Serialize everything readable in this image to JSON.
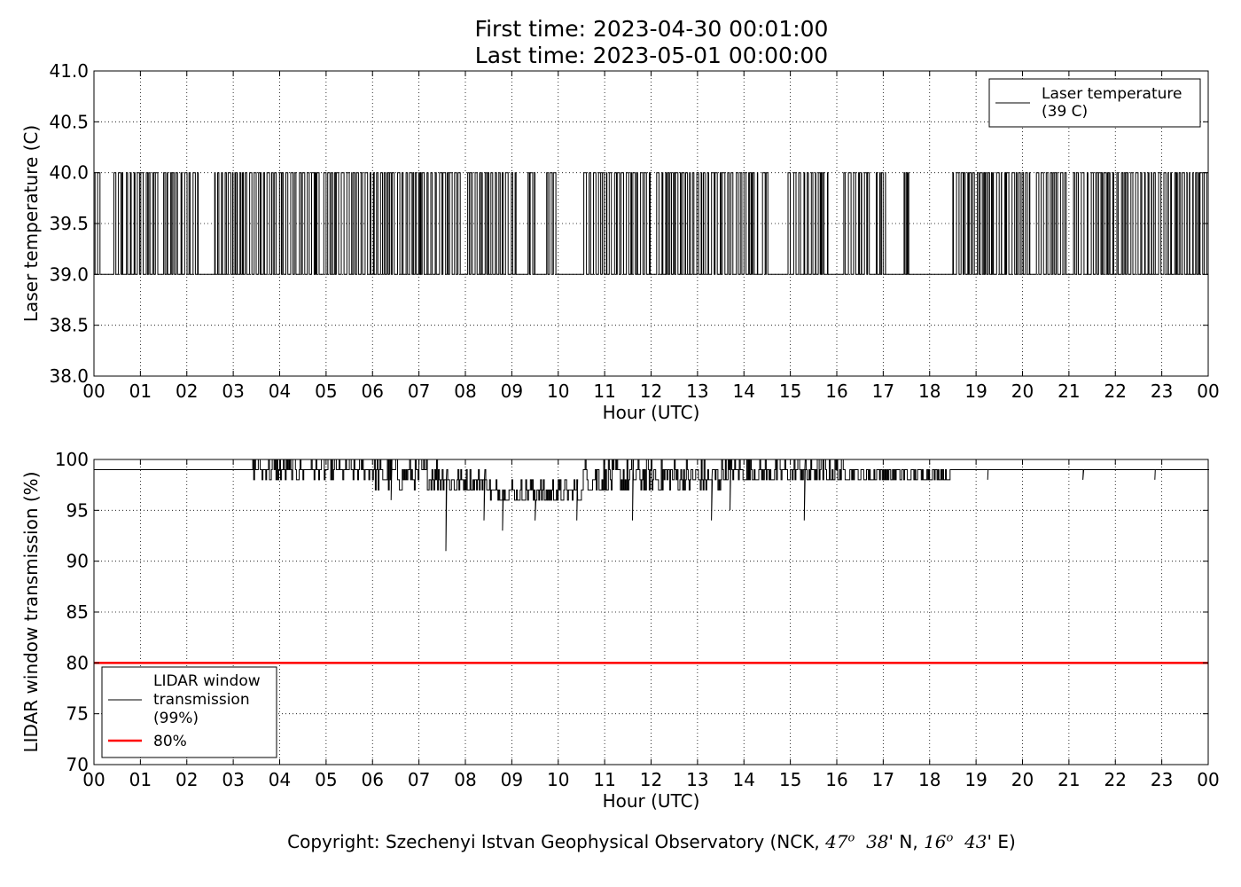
{
  "header": {
    "title_line1": "First time: 2023-04-30 00:01:00",
    "title_line2": "Last time: 2023-05-01 00:00:00"
  },
  "footer": {
    "copyright_prefix": "Copyright: Szechenyi Istvan Geophysical Observatory (NCK, ",
    "lat_deg": "47",
    "lat_min": "38",
    "lat_dir": "N",
    "lon_deg": "16",
    "lon_min": "43",
    "lon_dir": "E",
    "suffix": ")",
    "deg_symbol": "o",
    "min_symbol": "'"
  },
  "colors": {
    "series": "#000000",
    "threshold": "#ff0000",
    "grid": "#888888"
  },
  "chart_data": [
    {
      "type": "line",
      "xlabel": "Hour (UTC)",
      "ylabel": "Laser temperature (C)",
      "xlim": [
        0,
        24
      ],
      "ylim": [
        38.0,
        41.0
      ],
      "x_ticks": [
        "00",
        "01",
        "02",
        "03",
        "04",
        "05",
        "06",
        "07",
        "08",
        "09",
        "10",
        "11",
        "12",
        "13",
        "14",
        "15",
        "16",
        "17",
        "18",
        "19",
        "20",
        "21",
        "22",
        "23",
        "00"
      ],
      "y_ticks": [
        "38.0",
        "38.5",
        "39.0",
        "39.5",
        "40.0",
        "40.5",
        "41.0"
      ],
      "grid": true,
      "legend_position": "top-right",
      "series": [
        {
          "name": "Laser temperature\n(39 C)",
          "legend_lines": [
            "Laser temperature",
            "(39 C)"
          ],
          "baseline": 39.0,
          "high": 40.0,
          "step_segments": [
            [
              0.0,
              0.13
            ],
            [
              0.43,
              0.62
            ],
            [
              0.7,
              1.42
            ],
            [
              1.5,
              2.25
            ],
            [
              2.6,
              3.6
            ],
            [
              3.65,
              4.85
            ],
            [
              4.95,
              7.3
            ],
            [
              7.35,
              7.9
            ],
            [
              8.05,
              9.15
            ],
            [
              9.35,
              9.5
            ],
            [
              9.75,
              9.95
            ],
            [
              10.55,
              12.02
            ],
            [
              12.12,
              13.6
            ],
            [
              13.65,
              14.3
            ],
            [
              14.4,
              14.55
            ],
            [
              14.95,
              15.55
            ],
            [
              15.6,
              15.85
            ],
            [
              16.15,
              16.7
            ],
            [
              16.85,
              17.05
            ],
            [
              17.45,
              17.55
            ],
            [
              18.5,
              19.55
            ],
            [
              19.62,
              20.2
            ],
            [
              20.3,
              20.55
            ],
            [
              20.6,
              21.0
            ],
            [
              21.1,
              24.0
            ]
          ]
        }
      ]
    },
    {
      "type": "line",
      "xlabel": "Hour (UTC)",
      "ylabel": "LIDAR window transmission (%)",
      "xlim": [
        0,
        24
      ],
      "ylim": [
        70,
        100
      ],
      "x_ticks": [
        "00",
        "01",
        "02",
        "03",
        "04",
        "05",
        "06",
        "07",
        "08",
        "09",
        "10",
        "11",
        "12",
        "13",
        "14",
        "15",
        "16",
        "17",
        "18",
        "19",
        "20",
        "21",
        "22",
        "23",
        "00"
      ],
      "y_ticks": [
        "70",
        "75",
        "80",
        "85",
        "90",
        "95",
        "100"
      ],
      "grid": true,
      "legend_position": "bottom-left",
      "series": [
        {
          "name": "LIDAR window\ntransmission\n(99%)",
          "legend_lines": [
            "LIDAR window",
            "transmission",
            "(99%)"
          ],
          "baseline": 99,
          "noisy_ranges": [
            {
              "start": 3.4,
              "end": 6.0,
              "low": 98,
              "high": 100
            },
            {
              "start": 6.0,
              "end": 7.6,
              "low": 97,
              "high": 100
            },
            {
              "start": 7.6,
              "end": 8.5,
              "low": 96.5,
              "high": 99
            },
            {
              "start": 8.5,
              "end": 10.5,
              "low": 95.5,
              "high": 98
            },
            {
              "start": 10.5,
              "end": 13.5,
              "low": 96.5,
              "high": 100
            },
            {
              "start": 13.5,
              "end": 16.3,
              "low": 97.5,
              "high": 100
            },
            {
              "start": 16.3,
              "end": 18.45,
              "low": 98,
              "high": 99
            }
          ],
          "spikes": [
            [
              6.4,
              96
            ],
            [
              7.58,
              91
            ],
            [
              8.4,
              94
            ],
            [
              8.8,
              93
            ],
            [
              9.5,
              94
            ],
            [
              10.4,
              94
            ],
            [
              11.6,
              94
            ],
            [
              13.3,
              94
            ],
            [
              13.7,
              95
            ],
            [
              15.3,
              94
            ],
            [
              19.25,
              98
            ],
            [
              21.3,
              98
            ],
            [
              22.85,
              98
            ]
          ]
        },
        {
          "name": "80%",
          "legend_lines": [
            "80%"
          ],
          "values": [
            80,
            80
          ],
          "x": [
            0,
            24
          ]
        }
      ]
    }
  ]
}
